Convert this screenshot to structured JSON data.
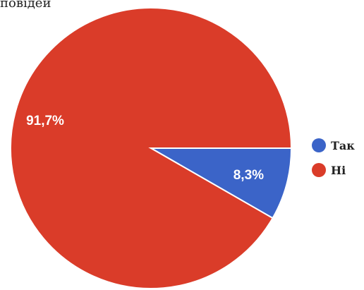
{
  "title_fragment": "повідей",
  "chart_data": {
    "type": "pie",
    "title": "",
    "slices": [
      {
        "label": "Так",
        "value": 8.3,
        "display": "8,3%",
        "color": "#3b64c8"
      },
      {
        "label": "Ні",
        "value": 91.7,
        "display": "91,7%",
        "color": "#da3c29"
      }
    ],
    "legend_position": "right",
    "label_color": "#ffffff"
  }
}
